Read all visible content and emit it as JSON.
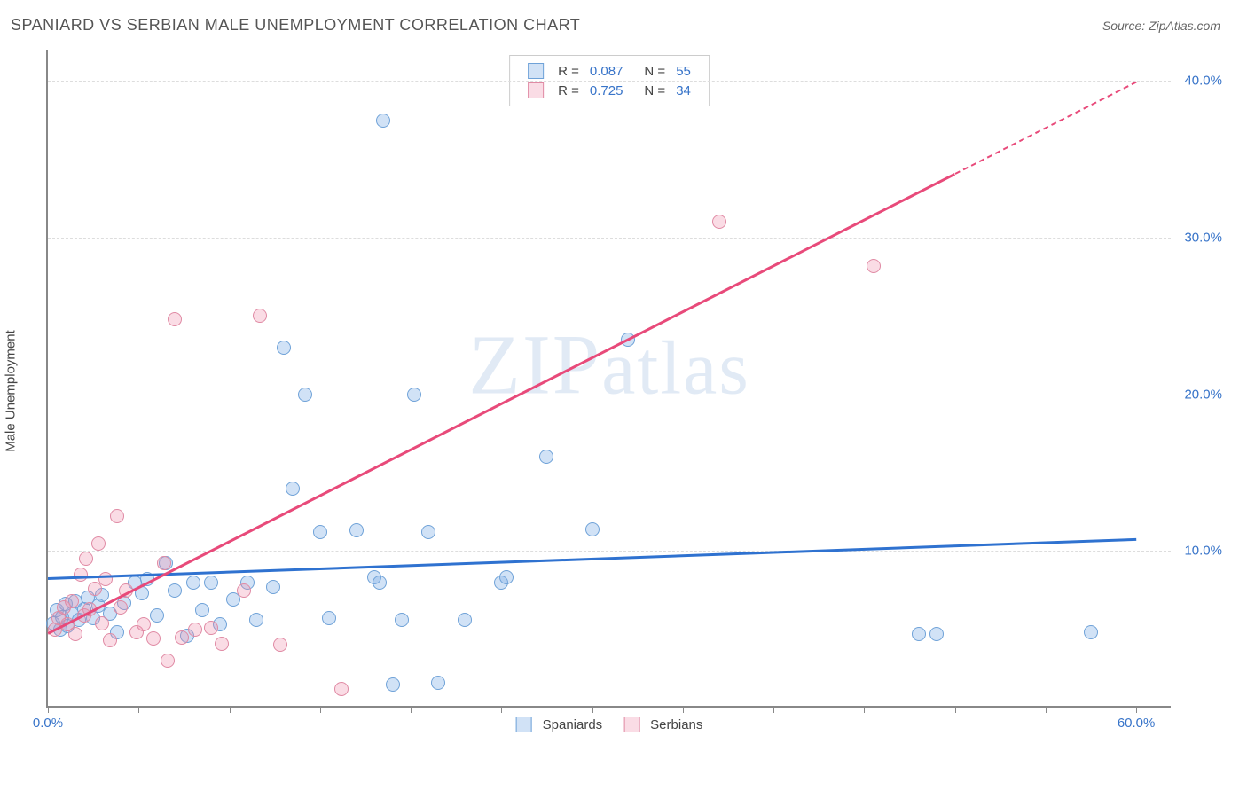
{
  "title": "SPANIARD VS SERBIAN MALE UNEMPLOYMENT CORRELATION CHART",
  "source_label": "Source: ZipAtlas.com",
  "watermark": "ZIPatlas",
  "y_axis_label": "Male Unemployment",
  "chart": {
    "type": "scatter",
    "background_color": "#ffffff",
    "grid_color": "#dddddd",
    "axis_color": "#888888",
    "xlim": [
      0,
      62
    ],
    "ylim": [
      0,
      42
    ],
    "x_ticks": [
      0,
      5,
      10,
      15,
      20,
      25,
      30,
      35,
      40,
      45,
      50,
      55,
      60
    ],
    "x_tick_labels": {
      "0": "0.0%",
      "60": "60.0%"
    },
    "y_ticks": [
      10,
      20,
      30,
      40
    ],
    "y_tick_labels": {
      "10": "10.0%",
      "20": "20.0%",
      "30": "30.0%",
      "40": "40.0%"
    },
    "tick_label_color": "#3874c9",
    "marker_radius": 8,
    "marker_border_width": 1.5,
    "series": [
      {
        "name": "Spaniards",
        "fill": "rgba(124,173,230,0.35)",
        "stroke": "#6fa2d8",
        "R": "0.087",
        "N": "55",
        "trend": {
          "y_at_x0": 8.3,
          "y_at_x60": 10.8,
          "color": "#2f72d0"
        },
        "points": [
          [
            0.3,
            5.4
          ],
          [
            0.5,
            6.2
          ],
          [
            0.7,
            5.0
          ],
          [
            0.8,
            5.8
          ],
          [
            1.0,
            6.6
          ],
          [
            1.1,
            5.2
          ],
          [
            1.3,
            6.0
          ],
          [
            1.5,
            6.8
          ],
          [
            1.7,
            5.6
          ],
          [
            2.0,
            6.3
          ],
          [
            2.2,
            7.0
          ],
          [
            2.5,
            5.7
          ],
          [
            2.8,
            6.5
          ],
          [
            3.0,
            7.2
          ],
          [
            3.4,
            6.0
          ],
          [
            3.8,
            4.8
          ],
          [
            4.2,
            6.7
          ],
          [
            4.8,
            8.0
          ],
          [
            5.2,
            7.3
          ],
          [
            5.5,
            8.2
          ],
          [
            6.0,
            5.9
          ],
          [
            6.5,
            9.2
          ],
          [
            7.0,
            7.5
          ],
          [
            7.7,
            4.6
          ],
          [
            8.0,
            8.0
          ],
          [
            8.5,
            6.2
          ],
          [
            9.0,
            8.0
          ],
          [
            9.5,
            5.3
          ],
          [
            10.2,
            6.9
          ],
          [
            11.0,
            8.0
          ],
          [
            11.5,
            5.6
          ],
          [
            12.4,
            7.7
          ],
          [
            13.0,
            23.0
          ],
          [
            13.5,
            14.0
          ],
          [
            14.2,
            20.0
          ],
          [
            15.0,
            11.2
          ],
          [
            15.5,
            5.7
          ],
          [
            17.0,
            11.3
          ],
          [
            18.0,
            8.3
          ],
          [
            18.3,
            8.0
          ],
          [
            18.5,
            37.5
          ],
          [
            19.0,
            1.5
          ],
          [
            19.5,
            5.6
          ],
          [
            20.2,
            20.0
          ],
          [
            21.0,
            11.2
          ],
          [
            21.5,
            1.6
          ],
          [
            23.0,
            5.6
          ],
          [
            25.0,
            8.0
          ],
          [
            25.3,
            8.3
          ],
          [
            27.5,
            16.0
          ],
          [
            30.0,
            11.4
          ],
          [
            32.0,
            23.5
          ],
          [
            48.0,
            4.7
          ],
          [
            49.0,
            4.7
          ],
          [
            57.5,
            4.8
          ]
        ]
      },
      {
        "name": "Serbians",
        "fill": "rgba(238,140,170,0.30)",
        "stroke": "#e08aa4",
        "R": "0.725",
        "N": "34",
        "trend": {
          "y_at_x0": 4.8,
          "y_at_x60": 40.0,
          "solid_until_x": 50,
          "color": "#e84a7a"
        },
        "points": [
          [
            0.4,
            5.0
          ],
          [
            0.6,
            5.7
          ],
          [
            0.9,
            6.4
          ],
          [
            1.1,
            5.3
          ],
          [
            1.3,
            6.8
          ],
          [
            1.5,
            4.7
          ],
          [
            1.8,
            8.5
          ],
          [
            2.0,
            5.9
          ],
          [
            2.1,
            9.5
          ],
          [
            2.3,
            6.3
          ],
          [
            2.6,
            7.6
          ],
          [
            2.8,
            10.5
          ],
          [
            3.0,
            5.4
          ],
          [
            3.2,
            8.2
          ],
          [
            3.4,
            4.3
          ],
          [
            3.8,
            12.2
          ],
          [
            4.0,
            6.4
          ],
          [
            4.3,
            7.5
          ],
          [
            4.9,
            4.8
          ],
          [
            5.3,
            5.3
          ],
          [
            5.8,
            4.4
          ],
          [
            6.4,
            9.2
          ],
          [
            6.6,
            3.0
          ],
          [
            7.0,
            24.8
          ],
          [
            7.4,
            4.5
          ],
          [
            8.1,
            5.0
          ],
          [
            9.0,
            5.1
          ],
          [
            9.6,
            4.1
          ],
          [
            10.8,
            7.5
          ],
          [
            11.7,
            25.0
          ],
          [
            12.8,
            4.0
          ],
          [
            16.2,
            1.2
          ],
          [
            37.0,
            31.0
          ],
          [
            45.5,
            28.2
          ]
        ]
      }
    ],
    "legend_value_color": "#3874c9"
  }
}
